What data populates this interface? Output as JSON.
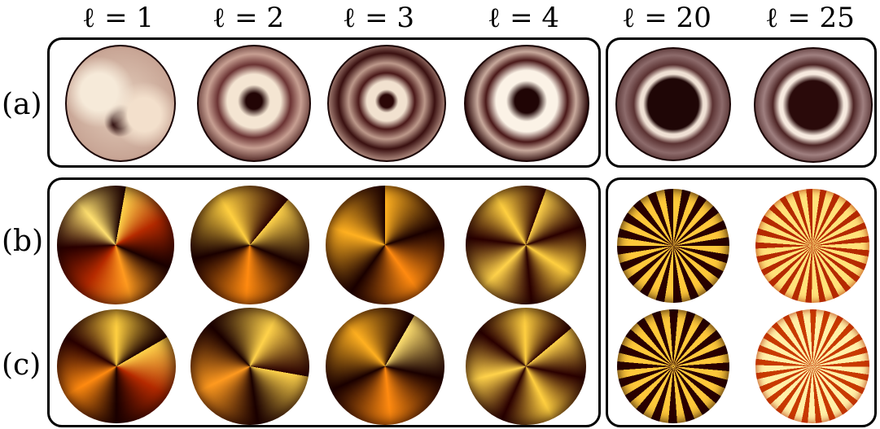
{
  "columns": [
    {
      "id": "l1",
      "label": "ℓ = 1"
    },
    {
      "id": "l2",
      "label": "ℓ = 2"
    },
    {
      "id": "l3",
      "label": "ℓ = 3"
    },
    {
      "id": "l4",
      "label": "ℓ = 4"
    },
    {
      "id": "l20",
      "label": "ℓ = 20"
    },
    {
      "id": "l25",
      "label": "ℓ = 25"
    }
  ],
  "rows": [
    {
      "id": "a",
      "label": "(a)"
    },
    {
      "id": "b",
      "label": "(b)"
    },
    {
      "id": "c",
      "label": "(c)"
    }
  ],
  "colors": {
    "row_a_dark": "#2b0a0a",
    "row_a_light": "#f3e4d6",
    "rows_bc_dark": "#1a0000",
    "rows_bc_mid": "#b52a00",
    "rows_bc_light": "#ffd24a"
  }
}
